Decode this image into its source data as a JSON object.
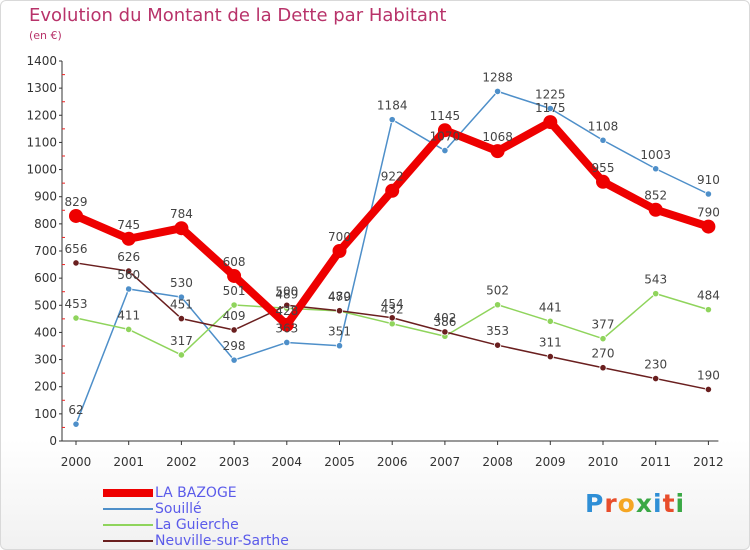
{
  "title": "Evolution du Montant de la Dette par Habitant",
  "unit": "(en €)",
  "logo": {
    "letters": [
      {
        "ch": "P",
        "color": "#2f8fd6"
      },
      {
        "ch": "r",
        "color": "#e84d2b"
      },
      {
        "ch": "o",
        "color": "#f5a623"
      },
      {
        "ch": "x",
        "color": "#3aa845"
      },
      {
        "ch": "i",
        "color": "#2f8fd6"
      },
      {
        "ch": "t",
        "color": "#e84d2b"
      },
      {
        "ch": "i",
        "color": "#3aa845"
      }
    ]
  },
  "chart_data": {
    "type": "line",
    "categories": [
      "2000",
      "2001",
      "2002",
      "2003",
      "2004",
      "2005",
      "2006",
      "2007",
      "2008",
      "2009",
      "2010",
      "2011",
      "2012"
    ],
    "ylim": [
      0,
      1400
    ],
    "yticks": [
      0,
      100,
      200,
      300,
      400,
      500,
      600,
      700,
      800,
      900,
      1000,
      1100,
      1200,
      1300,
      1400
    ],
    "grid": false,
    "legend_position": "bottom-left",
    "series": [
      {
        "name": "LA BAZOGE",
        "color": "#ee0000",
        "thick": true,
        "values": [
          829,
          745,
          784,
          608,
          428,
          700,
          922,
          1145,
          1068,
          1175,
          955,
          852,
          790
        ],
        "labels": [
          "829",
          "745",
          "784",
          "608",
          "428",
          "700",
          "922",
          "1145",
          "1068",
          "1175",
          "955",
          "852",
          "790"
        ]
      },
      {
        "name": "Souillé",
        "color": "#4e8fc9",
        "thick": false,
        "values": [
          62,
          560,
          530,
          298,
          363,
          351,
          1184,
          1070,
          1288,
          1225,
          1108,
          1003,
          910
        ],
        "labels": [
          "62",
          "560",
          "530",
          "298",
          "363",
          "351",
          "1184",
          "1070",
          "1288",
          "1225",
          "1108",
          "1003",
          "910"
        ]
      },
      {
        "name": "La Guierche",
        "color": "#8fd45c",
        "thick": false,
        "values": [
          453,
          411,
          317,
          501,
          489,
          479,
          432,
          386,
          502,
          441,
          377,
          543,
          484
        ],
        "labels": [
          "453",
          "411",
          "317",
          "501",
          "489",
          "479",
          "432",
          "386",
          "502",
          "441",
          "377",
          "543",
          "484"
        ]
      },
      {
        "name": "Neuville-sur-Sarthe",
        "color": "#6a1f1f",
        "thick": false,
        "values": [
          656,
          626,
          451,
          409,
          500,
          480,
          454,
          402,
          353,
          311,
          270,
          230,
          190
        ],
        "labels": [
          "656",
          "626",
          "451",
          "409",
          "500",
          "480",
          "454",
          "402",
          "353",
          "311",
          "270",
          "230",
          "190"
        ]
      }
    ]
  }
}
